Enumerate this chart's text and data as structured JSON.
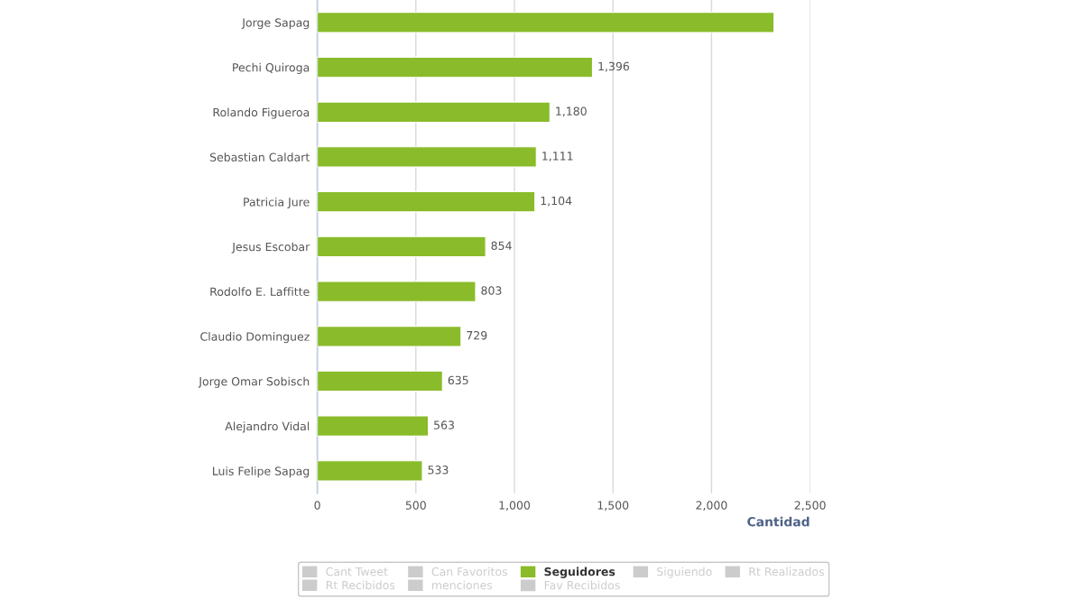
{
  "chart_data": {
    "type": "bar",
    "orientation": "horizontal",
    "categories": [
      "Jorge Sapag",
      "Pechi Quiroga",
      "Rolando Figueroa",
      "Sebastian Caldart",
      "Patricia Jure",
      "Jesus Escobar",
      "Rodolfo E. Laffitte",
      "Claudio Dominguez",
      "Jorge Omar Sobisch",
      "Alejandro Vidal",
      "Luis Felipe Sapag"
    ],
    "series": [
      {
        "name": "Cant Tweet",
        "color": "#cccccc",
        "values": [
          null,
          null,
          null,
          null,
          null,
          null,
          null,
          null,
          null,
          null,
          null
        ]
      },
      {
        "name": "Can Favoritos",
        "color": "#cccccc",
        "values": [
          null,
          null,
          null,
          null,
          null,
          null,
          null,
          null,
          null,
          null,
          null
        ]
      },
      {
        "name": "Seguidores",
        "color": "#8abb2a",
        "values": [
          2317,
          1396,
          1180,
          1111,
          1104,
          854,
          803,
          729,
          635,
          563,
          533
        ],
        "value_labels": [
          null,
          "1,396",
          "1,180",
          "1,111",
          "1,104",
          "854",
          "803",
          "729",
          "635",
          "563",
          "533"
        ]
      },
      {
        "name": "Siguiendo",
        "color": "#cccccc",
        "values": [
          null,
          null,
          null,
          null,
          null,
          null,
          null,
          null,
          null,
          null,
          null
        ]
      },
      {
        "name": "Rt Realizados",
        "color": "#cccccc",
        "values": [
          null,
          null,
          null,
          null,
          null,
          null,
          null,
          null,
          null,
          null,
          null
        ]
      },
      {
        "name": "Rt Recibidos",
        "color": "#cccccc",
        "values": [
          null,
          null,
          null,
          null,
          null,
          null,
          null,
          null,
          null,
          null,
          null
        ]
      },
      {
        "name": "menciones",
        "color": "#cccccc",
        "values": [
          null,
          null,
          null,
          null,
          null,
          null,
          null,
          null,
          null,
          null,
          null
        ]
      },
      {
        "name": "Fav Recibidos",
        "color": "#cccccc",
        "values": [
          null,
          null,
          null,
          null,
          null,
          null,
          null,
          null,
          null,
          null,
          null
        ]
      }
    ],
    "xlabel": "Cantidad",
    "xlim": [
      0,
      2500
    ],
    "xticks": [
      0,
      500,
      {
        "value": 1000,
        "label": "1,000"
      },
      {
        "value": 1500,
        "label": "1,500"
      },
      {
        "value": 2000,
        "label": "2,000"
      },
      {
        "value": 2500,
        "label": "2,500"
      }
    ],
    "grid": "x",
    "legend": "bottom"
  }
}
